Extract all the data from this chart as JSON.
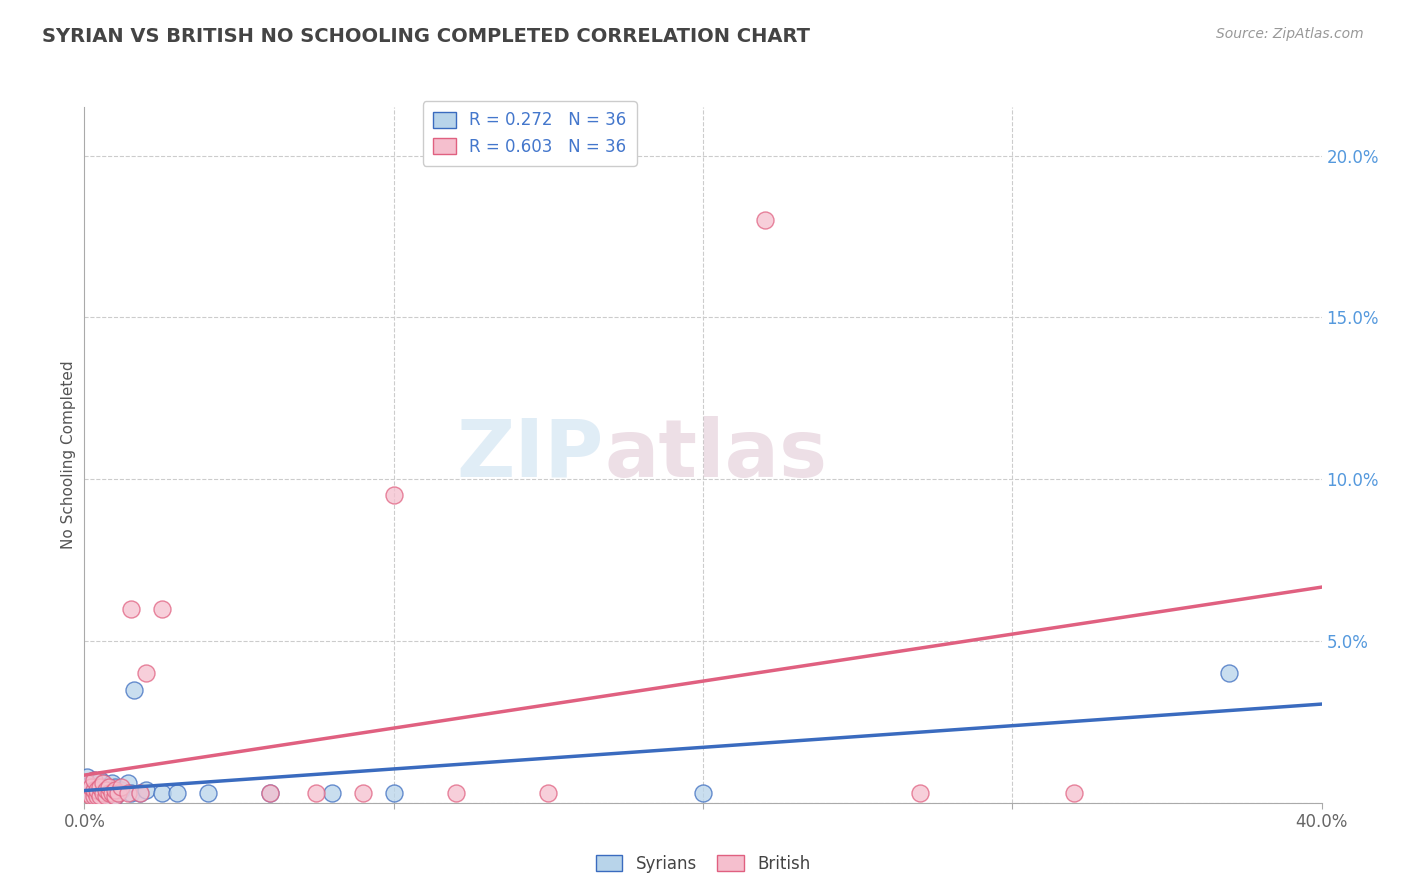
{
  "title": "SYRIAN VS BRITISH NO SCHOOLING COMPLETED CORRELATION CHART",
  "source": "Source: ZipAtlas.com",
  "ylabel": "No Schooling Completed",
  "legend_r_syrians": "R = 0.272",
  "legend_n_syrians": "N = 36",
  "legend_r_british": "R = 0.603",
  "legend_n_british": "N = 36",
  "watermark_zip": "ZIP",
  "watermark_atlas": "atlas",
  "syrians_color": "#b8d4ea",
  "syrians_line_color": "#3a6bbf",
  "british_color": "#f5bfce",
  "british_line_color": "#e06080",
  "background_color": "#ffffff",
  "grid_color": "#cccccc",
  "title_color": "#444444",
  "tick_color_y": "#5599dd",
  "tick_color_x": "#666666",
  "xlim": [
    0.0,
    0.4
  ],
  "ylim": [
    0.0,
    0.215
  ],
  "yticks": [
    0.0,
    0.05,
    0.1,
    0.15,
    0.2
  ],
  "syrians_x": [
    0.001,
    0.001,
    0.002,
    0.002,
    0.003,
    0.003,
    0.003,
    0.004,
    0.004,
    0.005,
    0.005,
    0.005,
    0.006,
    0.006,
    0.007,
    0.007,
    0.008,
    0.008,
    0.009,
    0.01,
    0.01,
    0.011,
    0.012,
    0.014,
    0.015,
    0.016,
    0.018,
    0.02,
    0.025,
    0.03,
    0.04,
    0.06,
    0.08,
    0.1,
    0.2,
    0.37
  ],
  "syrians_y": [
    0.005,
    0.008,
    0.003,
    0.006,
    0.002,
    0.004,
    0.007,
    0.003,
    0.005,
    0.002,
    0.004,
    0.007,
    0.003,
    0.006,
    0.002,
    0.005,
    0.003,
    0.004,
    0.006,
    0.002,
    0.005,
    0.003,
    0.004,
    0.006,
    0.003,
    0.035,
    0.003,
    0.004,
    0.003,
    0.003,
    0.003,
    0.003,
    0.003,
    0.003,
    0.003,
    0.04
  ],
  "british_x": [
    0.001,
    0.001,
    0.002,
    0.002,
    0.003,
    0.003,
    0.003,
    0.004,
    0.004,
    0.005,
    0.005,
    0.006,
    0.006,
    0.007,
    0.007,
    0.008,
    0.008,
    0.009,
    0.01,
    0.01,
    0.011,
    0.012,
    0.014,
    0.015,
    0.018,
    0.02,
    0.025,
    0.06,
    0.075,
    0.09,
    0.1,
    0.12,
    0.15,
    0.22,
    0.27,
    0.32
  ],
  "british_y": [
    0.003,
    0.006,
    0.002,
    0.005,
    0.002,
    0.004,
    0.007,
    0.002,
    0.004,
    0.002,
    0.005,
    0.003,
    0.006,
    0.002,
    0.004,
    0.003,
    0.005,
    0.003,
    0.002,
    0.004,
    0.003,
    0.005,
    0.003,
    0.06,
    0.003,
    0.04,
    0.06,
    0.003,
    0.003,
    0.003,
    0.095,
    0.003,
    0.003,
    0.18,
    0.003,
    0.003
  ]
}
